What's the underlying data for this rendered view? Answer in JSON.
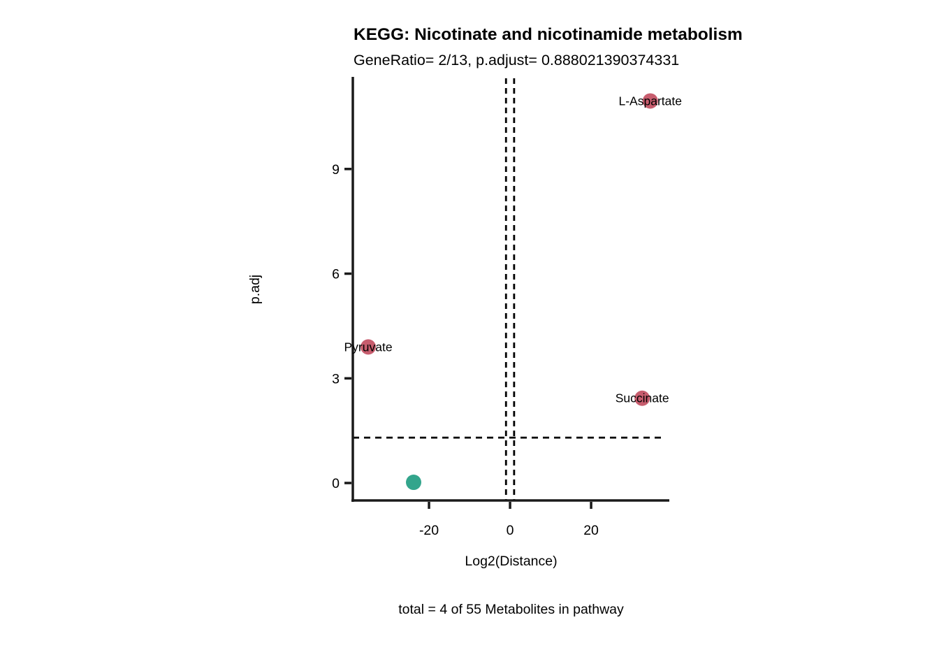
{
  "title": "KEGG: Nicotinate and nicotinamide metabolism",
  "subtitle": "GeneRatio= 2/13, p.adjust= 0.888021390374331",
  "caption": "total = 4 of 55 Metabolites in pathway",
  "colors": {
    "significant_point": "#C75D6E",
    "nonsignificant_point": "#33A58C",
    "axis": "#1a1a1a",
    "threshold_line": "#000000"
  },
  "chart_data": {
    "type": "scatter",
    "title": "KEGG: Nicotinate and nicotinamide metabolism",
    "subtitle": "GeneRatio= 2/13, p.adjust= 0.888021390374331",
    "caption": "total = 4 of 55 Metabolites in pathway",
    "xlabel": "Log2(Distance)",
    "ylabel": "p.adj",
    "xlim": [
      -38.8,
      39.3
    ],
    "ylim": [
      -0.5,
      11.6
    ],
    "xticks": [
      -20,
      0,
      20
    ],
    "yticks": [
      0,
      3,
      6,
      9
    ],
    "grid": false,
    "legend": "none",
    "hline_y": 1.3,
    "vlines_x": [
      -1,
      1
    ],
    "points": [
      {
        "label": "L-Aspartate",
        "x": 34.6,
        "y": 10.95,
        "color": "#C75D6E"
      },
      {
        "label": "Pyruvate",
        "x": -35.0,
        "y": 3.9,
        "color": "#C75D6E"
      },
      {
        "label": "Succinate",
        "x": 32.6,
        "y": 2.43,
        "color": "#C75D6E"
      },
      {
        "label": "",
        "x": -23.8,
        "y": 0.02,
        "color": "#33A58C"
      }
    ]
  }
}
